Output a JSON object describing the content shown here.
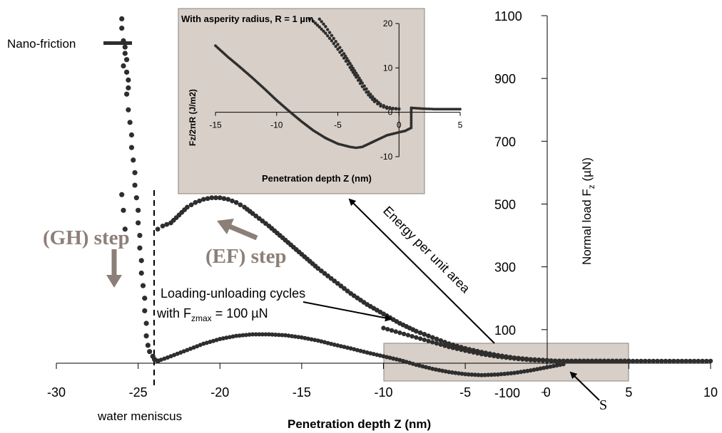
{
  "chart_data": [
    {
      "type": "scatter",
      "xlabel": "Penetration depth Z (nm)",
      "ylabel": "Normal load F",
      "ylabel_sub": "z",
      "ylabel_unit": " (µN)",
      "xlim": [
        -30,
        10
      ],
      "ylim": [
        -100,
        1100
      ],
      "x_ticks": [
        -30,
        -25,
        -20,
        -15,
        -10,
        -5,
        0,
        5,
        10
      ],
      "y_ticks": [
        -100,
        100,
        300,
        500,
        700,
        900,
        1100
      ],
      "x_tick_labels": [
        "-30",
        "-25",
        "-20",
        "-15",
        "-10",
        "-5",
        "0",
        "5",
        "10"
      ],
      "y_tick_labels": [
        "-100",
        "100",
        "300",
        "500",
        "700",
        "900",
        "1100"
      ],
      "series": [
        {
          "name": "",
          "points": [
            [
              -26.0,
              1090
            ],
            [
              -26.0,
              1060
            ],
            [
              -25.9,
              1020
            ],
            [
              -25.8,
              1000
            ],
            [
              -25.8,
              980
            ],
            [
              -25.7,
              960
            ],
            [
              -25.9,
              940
            ],
            [
              -25.7,
              920
            ],
            [
              -25.6,
              895
            ],
            [
              -25.6,
              870
            ],
            [
              -25.7,
              850
            ],
            [
              -25.6,
              800
            ],
            [
              -25.5,
              760
            ],
            [
              -25.4,
              720
            ],
            [
              -25.4,
              680
            ],
            [
              -25.3,
              640
            ],
            [
              -25.2,
              600
            ],
            [
              -25.2,
              560
            ],
            [
              -25.1,
              520
            ],
            [
              -25.0,
              480
            ],
            [
              -26.0,
              530
            ],
            [
              -25.9,
              480
            ],
            [
              -25.8,
              420
            ],
            [
              -25.0,
              440
            ],
            [
              -24.9,
              400
            ],
            [
              -24.9,
              360
            ],
            [
              -24.8,
              320
            ],
            [
              -24.8,
              280
            ],
            [
              -24.7,
              240
            ],
            [
              -24.6,
              200
            ],
            [
              -24.6,
              160
            ],
            [
              -24.5,
              120
            ],
            [
              -24.5,
              80
            ],
            [
              -24.4,
              50
            ],
            [
              -24.3,
              30
            ],
            [
              -24.1,
              15
            ],
            [
              -24.0,
              5
            ],
            [
              -23.8,
              0
            ]
          ]
        },
        {
          "name": "",
          "x": [
            -23.8,
            -23.5,
            -23.0,
            -22.5,
            -22.0,
            -21.5,
            -21.0,
            -20.5,
            -20.0,
            -19.5,
            -19.0,
            -18.5,
            -18.0,
            -17.0,
            -16.0,
            -15.0,
            -14.0,
            -13.0,
            -12.0,
            -11.0,
            -10.0,
            -9.0,
            -8.0,
            -7.0,
            -6.0,
            -5.0,
            -4.0,
            -3.0,
            -2.0,
            -1.0,
            0.0,
            0.5,
            1.0,
            2.0,
            3.0,
            4.0,
            5.0
          ],
          "y": [
            420,
            430,
            440,
            465,
            490,
            505,
            515,
            520,
            520,
            515,
            505,
            490,
            470,
            430,
            385,
            340,
            295,
            255,
            215,
            180,
            150,
            120,
            95,
            75,
            55,
            40,
            28,
            18,
            10,
            5,
            2,
            0,
            0,
            0,
            0,
            0,
            0
          ]
        },
        {
          "name": "",
          "x": [
            -10.0,
            -9.0,
            -8.0,
            -7.0,
            -6.0,
            -5.0,
            -4.0,
            -3.0,
            -2.0,
            -1.0,
            0.0,
            1.0,
            2.0,
            3.0,
            4.0,
            5.0,
            6.0,
            7.0,
            8.0,
            9.0,
            10.0
          ],
          "y": [
            105,
            90,
            75,
            60,
            45,
            33,
            22,
            14,
            8,
            3,
            1,
            0,
            0,
            0,
            0,
            0,
            0,
            0,
            0,
            0,
            0
          ]
        },
        {
          "name": "",
          "x": [
            -23.8,
            -23.0,
            -22.0,
            -21.0,
            -20.0,
            -19.0,
            -18.0,
            -17.0,
            -16.0,
            -15.0,
            -14.0,
            -13.0,
            -12.0,
            -11.0,
            -10.0,
            -9.0,
            -8.0,
            -7.0,
            -6.0,
            -5.0,
            -4.0,
            -3.0,
            -2.0,
            -1.0,
            0.0,
            1.0
          ],
          "y": [
            0,
            15,
            35,
            55,
            70,
            80,
            85,
            85,
            82,
            75,
            65,
            52,
            40,
            27,
            15,
            3,
            -12,
            -25,
            -35,
            -42,
            -45,
            -43,
            -38,
            -30,
            -20,
            -10
          ]
        }
      ],
      "annotations": {
        "nano_friction": "Nano-friction",
        "gh_step": "(GH) step",
        "ef_step": "(EF) step",
        "cycles_line1": "Loading-unloading cycles",
        "cycles_line2_pre": "with F",
        "cycles_line2_sub": "zmax",
        "cycles_line2_post": " = 100 µN",
        "energy": "Energy per unit area",
        "water_meniscus": "water meniscus",
        "s_label": "S"
      },
      "colors": {
        "points": "#2e2e2e",
        "step_text": "#8c7f77",
        "step_arrow": "#8c7f77",
        "box_fill": "#d8cfc8"
      }
    },
    {
      "type": "scatter",
      "title": "With asperity  radius, R = 1 µm",
      "xlabel": "Penetration depth Z (nm)",
      "ylabel": "Fz/2πR (J/m2)",
      "xlim": [
        -15,
        5
      ],
      "ylim": [
        -10,
        20
      ],
      "x_ticks": [
        -15,
        -10,
        -5,
        0,
        5
      ],
      "y_ticks": [
        -10,
        0,
        10,
        20
      ],
      "x_tick_labels": [
        "-15",
        "-10",
        "-5",
        "0",
        "5"
      ],
      "y_tick_labels": [
        "-10",
        "0",
        "10",
        "20"
      ],
      "series": [
        {
          "name": "",
          "x": [
            -15,
            -14,
            -13,
            -12,
            -11,
            -10,
            -9,
            -8,
            -7,
            -6,
            -5,
            -4,
            -3.5,
            -3,
            -2,
            -1,
            0,
            0.5,
            1.0,
            1.0,
            1.0,
            2,
            3,
            4,
            5
          ],
          "y": [
            15,
            12.5,
            10.2,
            7.8,
            5.3,
            2.7,
            0.3,
            -2.0,
            -4.1,
            -5.8,
            -7.1,
            -7.8,
            -8.0,
            -7.8,
            -6.5,
            -5.2,
            -4.5,
            -4.2,
            -3.5,
            -1.0,
            1.0,
            0.8,
            0.7,
            0.7,
            0.7
          ]
        },
        {
          "name": "",
          "x": [
            -7.3,
            -7.0,
            -6.5,
            -6.0,
            -5.5,
            -5.0,
            -4.5,
            -4.0,
            -3.5,
            -3.0,
            -2.5,
            -2.0,
            -1.5,
            -1.0,
            -0.5,
            0
          ],
          "y": [
            21,
            20.5,
            19.2,
            17.8,
            16.1,
            14.2,
            12.2,
            10.1,
            7.9,
            5.8,
            3.9,
            2.4,
            1.4,
            0.9,
            0.8,
            0.7
          ]
        },
        {
          "name": "",
          "x": [
            -6.5,
            -6.0,
            -5.5,
            -5.0,
            -4.5,
            -4.0,
            -3.5,
            -3.0,
            -2.5,
            -2.0,
            -1.5,
            -1.0,
            -0.5,
            0
          ],
          "y": [
            21,
            19.3,
            17.3,
            15.3,
            13.2,
            11.0,
            8.8,
            6.6,
            4.6,
            3.0,
            1.8,
            1.2,
            0.9,
            0.8
          ]
        }
      ]
    }
  ]
}
